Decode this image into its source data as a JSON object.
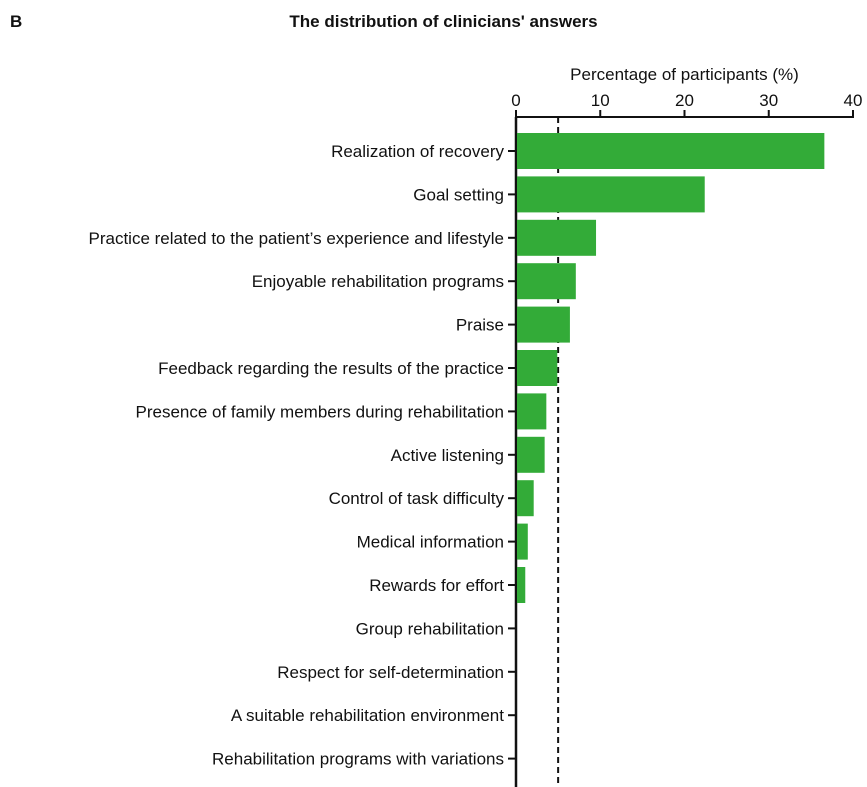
{
  "panel_label": "B",
  "chart_data": {
    "type": "bar",
    "orientation": "horizontal",
    "title": "The distribution of clinicians' answers",
    "xlabel": "Percentage of participants (%)",
    "xlim": [
      0,
      40
    ],
    "xticks": [
      0,
      10,
      20,
      30,
      40
    ],
    "axis_position": "top",
    "grid": false,
    "reference_line": {
      "value": 5,
      "style": "dashed"
    },
    "bar_color": "#33ab38",
    "categories": [
      "Realization of recovery",
      "Goal setting",
      "Practice related to the patient’s experience and lifestyle",
      "Enjoyable rehabilitation programs",
      "Praise",
      "Feedback regarding the results of the practice",
      "Presence of family members during rehabilitation",
      "Active listening",
      "Control of task difficulty",
      "Medical information",
      "Rewards for effort",
      "Group rehabilitation",
      "Respect for self-determination",
      "A suitable rehabilitation environment",
      "Rehabilitation programs with variations"
    ],
    "values": [
      36.6,
      22.4,
      9.5,
      7.1,
      6.4,
      4.9,
      3.6,
      3.4,
      2.1,
      1.4,
      1.1,
      0,
      0,
      0,
      0
    ]
  }
}
